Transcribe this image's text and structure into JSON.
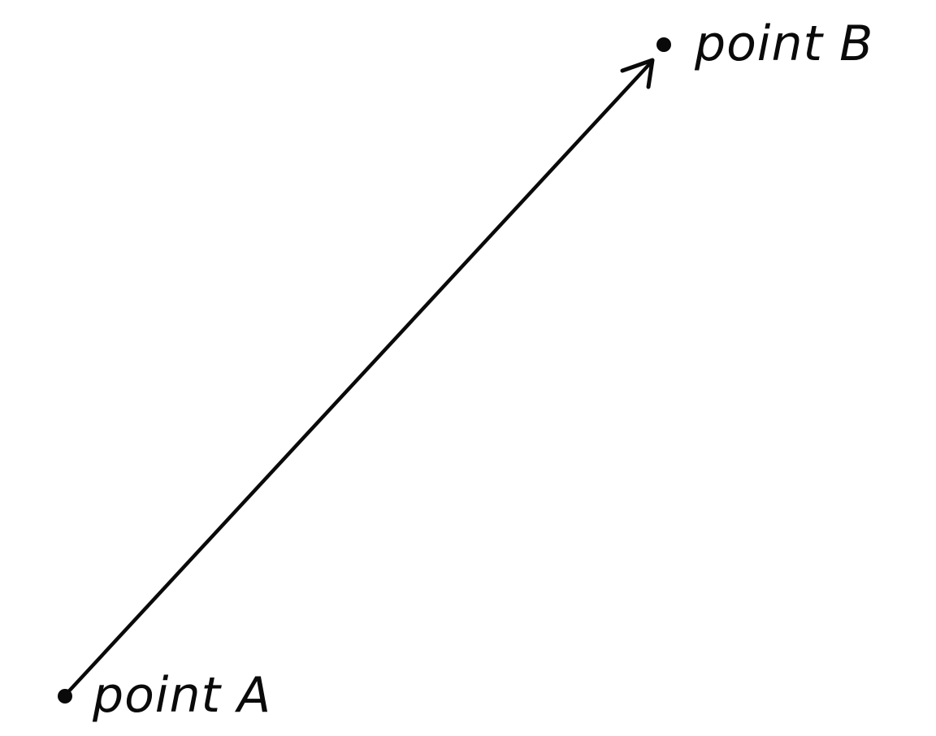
{
  "diagram": {
    "point_a_label": "point A",
    "point_b_label": "point B",
    "ink_color": "#0a0a0a",
    "background_color": "#ffffff"
  }
}
